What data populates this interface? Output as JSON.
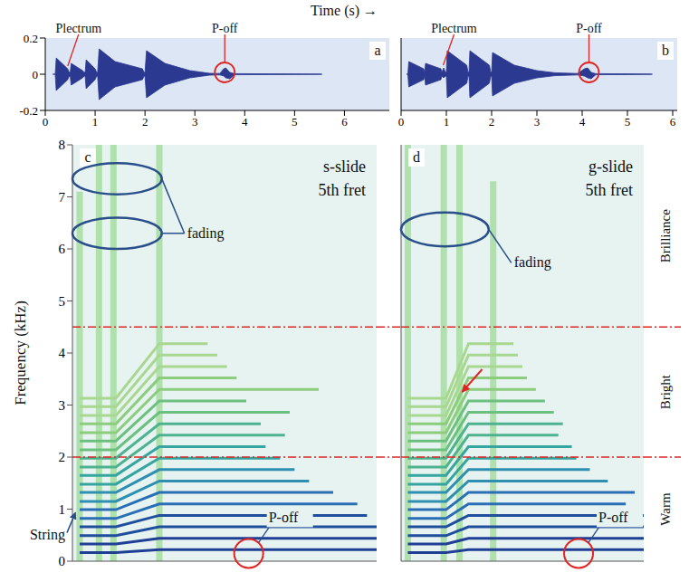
{
  "title": "Time (s) →",
  "chart_data": [
    {
      "type": "area",
      "panel": "a",
      "xlim": [
        0,
        6.9
      ],
      "xticks": [
        0,
        1,
        2,
        3,
        4,
        5,
        6
      ],
      "ylim": [
        -0.2,
        0.2
      ],
      "yticks": [
        -0.2,
        0,
        0.2
      ],
      "x": [
        0.15,
        0.2,
        0.22,
        0.45,
        0.48,
        0.5,
        0.52,
        0.75,
        0.78,
        0.8,
        0.82,
        1.0,
        1.03,
        1.05,
        1.08,
        1.4,
        1.95,
        1.98,
        2.0,
        2.03,
        2.4,
        2.9,
        3.3,
        3.5,
        3.58,
        3.62,
        3.7,
        3.8,
        4.5,
        5.5,
        5.55
      ],
      "series": [
        {
          "color": "#2b3990",
          "values": [
            0,
            0,
            0.09,
            0.03,
            0.01,
            0.01,
            0.06,
            0.02,
            0.01,
            0.01,
            0.08,
            0.03,
            0.01,
            0.01,
            0.14,
            0.07,
            0.03,
            0.01,
            0.01,
            0.13,
            0.06,
            0.02,
            0.005,
            0.004,
            0.03,
            0.035,
            0.01,
            0.003,
            0.002,
            0.001,
            0
          ]
        },
        {
          "color": "#2b3990",
          "values": [
            0,
            0,
            -0.09,
            -0.03,
            -0.01,
            -0.01,
            -0.06,
            -0.02,
            -0.01,
            -0.01,
            -0.08,
            -0.03,
            -0.01,
            -0.01,
            -0.14,
            -0.07,
            -0.03,
            -0.01,
            -0.01,
            -0.13,
            -0.06,
            -0.02,
            -0.005,
            -0.004,
            -0.01,
            -0.02,
            -0.025,
            -0.003,
            -0.002,
            -0.001,
            0
          ]
        }
      ],
      "annotations": [
        {
          "text": "Plectrum",
          "x": 0.45,
          "y": 0.03,
          "marker": "line"
        },
        {
          "text": "P-off",
          "x": 3.6,
          "y": 0.01,
          "marker": "circle"
        }
      ]
    },
    {
      "type": "area",
      "panel": "b",
      "xlim": [
        0,
        6.1
      ],
      "xticks": [
        0,
        1,
        2,
        3,
        4,
        5,
        6
      ],
      "ylim": [
        -0.2,
        0.2
      ],
      "tick_labels": "x",
      "x": [
        0.12,
        0.15,
        0.17,
        0.5,
        0.52,
        0.54,
        0.88,
        0.9,
        0.94,
        0.98,
        1.0,
        1.02,
        1.45,
        1.48,
        1.5,
        1.52,
        1.95,
        1.98,
        2.0,
        2.02,
        2.5,
        3.0,
        3.4,
        3.9,
        4.05,
        4.12,
        4.2,
        4.3,
        5.0,
        5.5,
        5.55
      ],
      "series": [
        {
          "color": "#2b3990",
          "values": [
            0,
            0,
            0.07,
            0.03,
            0.01,
            0.06,
            0.03,
            0.01,
            0.035,
            0.01,
            0.01,
            0.13,
            0.05,
            0.01,
            0.01,
            0.13,
            0.05,
            0.01,
            0.01,
            0.12,
            0.05,
            0.02,
            0.008,
            0.004,
            0.03,
            0.035,
            0.01,
            0.003,
            0.002,
            0.001,
            0
          ]
        },
        {
          "color": "#2b3990",
          "values": [
            0,
            0,
            -0.07,
            -0.03,
            -0.01,
            -0.06,
            -0.03,
            -0.01,
            -0.02,
            -0.01,
            -0.01,
            -0.13,
            -0.05,
            -0.01,
            -0.01,
            -0.13,
            -0.05,
            -0.01,
            -0.01,
            -0.12,
            -0.05,
            -0.02,
            -0.008,
            -0.004,
            -0.01,
            -0.02,
            -0.025,
            -0.003,
            -0.002,
            -0.001,
            0
          ]
        }
      ],
      "annotations": [
        {
          "text": "Plectrum",
          "x": 0.93,
          "y": 0.035,
          "marker": "line"
        },
        {
          "text": "P-off",
          "x": 4.15,
          "y": 0.01,
          "marker": "circle"
        }
      ]
    },
    {
      "type": "spectrogram",
      "panel": "c",
      "title": "s-slide",
      "subtitle": "5th fret",
      "ylabel": "Frequency (kHz)",
      "xlim": [
        0,
        6.3
      ],
      "ylim": [
        0,
        8
      ],
      "yticks": [
        0,
        1,
        2,
        3,
        4,
        5,
        6,
        7,
        8
      ],
      "tick_labels": "y",
      "hlines": [
        2,
        4.5
      ],
      "series": [
        {
          "type": "band",
          "color": "#a6dca0",
          "x": [
            0.15,
            0.15
          ],
          "values": [
            0,
            7.1
          ]
        },
        {
          "type": "band",
          "color": "#a6dca0",
          "x": [
            0.55,
            0.55
          ],
          "values": [
            0,
            8
          ]
        },
        {
          "type": "band",
          "color": "#a6dca0",
          "x": [
            0.85,
            0.85
          ],
          "values": [
            0,
            8
          ]
        },
        {
          "type": "band",
          "color": "#a6dca0",
          "x": [
            1.8,
            1.8
          ],
          "values": [
            0,
            8
          ]
        },
        {
          "type": "line",
          "color": "#1f3f95",
          "x": [
            0.15,
            0.9,
            1.8,
            6.3
          ],
          "values": [
            0.165,
            0.165,
            0.22,
            0.22
          ]
        },
        {
          "type": "line",
          "color": "#1f3f95",
          "x": [
            0.15,
            0.9,
            1.8,
            6.3
          ],
          "values": [
            0.33,
            0.33,
            0.44,
            0.44
          ]
        },
        {
          "type": "line",
          "color": "#1f4e9c",
          "x": [
            0.15,
            0.9,
            1.8,
            6.3
          ],
          "values": [
            0.49,
            0.49,
            0.66,
            0.66
          ]
        },
        {
          "type": "line",
          "color": "#1f4e9c",
          "x": [
            0.15,
            0.9,
            1.8,
            6.1
          ],
          "values": [
            0.66,
            0.66,
            0.88,
            0.88
          ]
        },
        {
          "type": "line",
          "color": "#2a6fb5",
          "x": [
            0.15,
            0.9,
            1.8,
            5.9
          ],
          "values": [
            0.82,
            0.82,
            1.1,
            1.1
          ]
        },
        {
          "type": "line",
          "color": "#2a6fb5",
          "x": [
            0.15,
            0.9,
            1.8,
            5.4
          ],
          "values": [
            0.99,
            0.99,
            1.32,
            1.32
          ]
        },
        {
          "type": "line",
          "color": "#2f8fb0",
          "x": [
            0.15,
            0.9,
            1.8,
            4.9
          ],
          "values": [
            1.15,
            1.15,
            1.54,
            1.54
          ]
        },
        {
          "type": "line",
          "color": "#2f8fb0",
          "x": [
            0.15,
            0.9,
            1.8,
            4.6
          ],
          "values": [
            1.32,
            1.32,
            1.76,
            1.76
          ]
        },
        {
          "type": "line",
          "color": "#35a5a0",
          "x": [
            0.15,
            0.9,
            1.8,
            4.3
          ],
          "values": [
            1.48,
            1.48,
            1.98,
            1.98
          ]
        },
        {
          "type": "line",
          "color": "#35a5a0",
          "x": [
            0.15,
            0.9,
            1.8,
            4.0
          ],
          "values": [
            1.65,
            1.65,
            2.2,
            2.2
          ]
        },
        {
          "type": "line",
          "color": "#4db38f",
          "x": [
            0.15,
            0.9,
            1.8,
            4.4
          ],
          "values": [
            1.81,
            1.81,
            2.42,
            2.42
          ]
        },
        {
          "type": "line",
          "color": "#4db38f",
          "x": [
            0.15,
            0.9,
            1.8,
            3.9
          ],
          "values": [
            1.98,
            1.98,
            2.64,
            2.64
          ]
        },
        {
          "type": "line",
          "color": "#6cc07f",
          "x": [
            0.15,
            0.9,
            1.8,
            4.5
          ],
          "values": [
            2.14,
            2.14,
            2.86,
            2.86
          ]
        },
        {
          "type": "line",
          "color": "#6cc07f",
          "x": [
            0.15,
            0.9,
            1.8,
            3.6
          ],
          "values": [
            2.31,
            2.31,
            3.08,
            3.08
          ]
        },
        {
          "type": "line",
          "color": "#8ccc7d",
          "x": [
            0.15,
            0.9,
            1.8,
            5.1
          ],
          "values": [
            2.47,
            2.47,
            3.3,
            3.3
          ]
        },
        {
          "type": "line",
          "color": "#8ccc7d",
          "x": [
            0.15,
            0.9,
            1.8,
            3.4
          ],
          "values": [
            2.64,
            2.64,
            3.52,
            3.52
          ]
        },
        {
          "type": "line",
          "color": "#a8d88f",
          "x": [
            0.15,
            0.9,
            1.8,
            3.2
          ],
          "values": [
            2.8,
            2.8,
            3.74,
            3.74
          ]
        },
        {
          "type": "line",
          "color": "#a8d88f",
          "x": [
            0.15,
            0.9,
            1.8,
            3.0
          ],
          "values": [
            2.97,
            2.97,
            3.96,
            3.96
          ]
        },
        {
          "type": "line",
          "color": "#a8d88f",
          "x": [
            0.15,
            0.9,
            1.8,
            2.8
          ],
          "values": [
            3.13,
            3.13,
            4.18,
            4.18
          ]
        }
      ],
      "ellipses": [
        {
          "x": [
            0,
            1.85
          ],
          "y": [
            7.05,
            7.65
          ]
        },
        {
          "x": [
            0,
            1.85
          ],
          "y": [
            6.0,
            6.6
          ]
        }
      ],
      "ellipse_label": "fading",
      "annotations": [
        {
          "text": "String",
          "x": 0.1,
          "y": 1.0,
          "marker": "arrow"
        },
        {
          "text": "P-off",
          "x": 3.65,
          "y": 0.15,
          "marker": "circle"
        }
      ]
    },
    {
      "type": "spectrogram",
      "panel": "d",
      "title": "g-slide",
      "subtitle": "5th fret",
      "xlim": [
        0,
        5.4
      ],
      "ylim": [
        0,
        8
      ],
      "tick_labels": false,
      "hlines": [
        2,
        4.5
      ],
      "series": [
        {
          "type": "band",
          "color": "#a6dca0",
          "x": [
            0.15,
            0.15
          ],
          "values": [
            0,
            8
          ]
        },
        {
          "type": "band",
          "color": "#a6dca0",
          "x": [
            0.95,
            0.95
          ],
          "values": [
            0,
            8
          ]
        },
        {
          "type": "band",
          "color": "#a6dca0",
          "x": [
            1.3,
            1.3
          ],
          "values": [
            0,
            8
          ]
        },
        {
          "type": "band",
          "color": "#a6dca0",
          "x": [
            2.05,
            2.05
          ],
          "values": [
            0,
            7.3
          ]
        },
        {
          "type": "line",
          "color": "#1f3f95",
          "x": [
            0.15,
            1.0,
            1.5,
            5.4
          ],
          "values": [
            0.165,
            0.165,
            0.22,
            0.22
          ]
        },
        {
          "type": "line",
          "color": "#1f3f95",
          "x": [
            0.15,
            1.0,
            1.5,
            5.4
          ],
          "values": [
            0.33,
            0.33,
            0.44,
            0.44
          ]
        },
        {
          "type": "line",
          "color": "#1f4e9c",
          "x": [
            0.15,
            1.0,
            1.5,
            5.4
          ],
          "values": [
            0.49,
            0.49,
            0.66,
            0.66
          ]
        },
        {
          "type": "line",
          "color": "#1f4e9c",
          "x": [
            0.15,
            1.0,
            1.5,
            5.4
          ],
          "values": [
            0.66,
            0.66,
            0.88,
            0.88
          ]
        },
        {
          "type": "line",
          "color": "#2a6fb5",
          "x": [
            0.15,
            1.0,
            1.5,
            5.0
          ],
          "values": [
            0.82,
            0.82,
            1.1,
            1.1
          ]
        },
        {
          "type": "line",
          "color": "#2a6fb5",
          "x": [
            0.15,
            1.0,
            1.5,
            5.2
          ],
          "values": [
            0.99,
            0.99,
            1.32,
            1.32
          ]
        },
        {
          "type": "line",
          "color": "#2f8fb0",
          "x": [
            0.15,
            1.0,
            1.5,
            4.6
          ],
          "values": [
            1.15,
            1.15,
            1.54,
            1.54
          ]
        },
        {
          "type": "line",
          "color": "#2f8fb0",
          "x": [
            0.15,
            1.0,
            1.5,
            4.2
          ],
          "values": [
            1.32,
            1.32,
            1.76,
            1.76
          ]
        },
        {
          "type": "line",
          "color": "#35a5a0",
          "x": [
            0.15,
            1.0,
            1.5,
            3.9
          ],
          "values": [
            1.48,
            1.48,
            1.98,
            1.98
          ]
        },
        {
          "type": "line",
          "color": "#35a5a0",
          "x": [
            0.15,
            1.0,
            1.5,
            3.8
          ],
          "values": [
            1.65,
            1.65,
            2.2,
            2.2
          ]
        },
        {
          "type": "line",
          "color": "#4db38f",
          "x": [
            0.15,
            1.0,
            1.5,
            3.5
          ],
          "values": [
            1.81,
            1.81,
            2.42,
            2.42
          ]
        },
        {
          "type": "line",
          "color": "#4db38f",
          "x": [
            0.15,
            1.0,
            1.5,
            3.6
          ],
          "values": [
            1.98,
            1.98,
            2.64,
            2.64
          ]
        },
        {
          "type": "line",
          "color": "#6cc07f",
          "x": [
            0.15,
            1.0,
            1.5,
            3.4
          ],
          "values": [
            2.14,
            2.14,
            2.86,
            2.86
          ]
        },
        {
          "type": "line",
          "color": "#6cc07f",
          "x": [
            0.15,
            1.0,
            1.5,
            3.2
          ],
          "values": [
            2.31,
            2.31,
            3.08,
            3.08
          ]
        },
        {
          "type": "line",
          "color": "#8ccc7d",
          "x": [
            0.15,
            1.0,
            1.5,
            3.0
          ],
          "values": [
            2.47,
            2.47,
            3.3,
            3.3
          ]
        },
        {
          "type": "line",
          "color": "#8ccc7d",
          "x": [
            0.15,
            1.0,
            1.5,
            2.8
          ],
          "values": [
            2.64,
            2.64,
            3.52,
            3.52
          ]
        },
        {
          "type": "line",
          "color": "#a8d88f",
          "x": [
            0.15,
            1.0,
            1.5,
            2.7
          ],
          "values": [
            2.8,
            2.8,
            3.74,
            3.74
          ]
        },
        {
          "type": "line",
          "color": "#a8d88f",
          "x": [
            0.15,
            1.0,
            1.5,
            2.6
          ],
          "values": [
            2.97,
            2.97,
            3.96,
            3.96
          ]
        },
        {
          "type": "line",
          "color": "#a8d88f",
          "x": [
            0.15,
            1.0,
            1.5,
            2.5
          ],
          "values": [
            3.13,
            3.13,
            4.18,
            4.18
          ]
        }
      ],
      "ellipses": [
        {
          "x": [
            0,
            1.95
          ],
          "y": [
            6.05,
            6.7
          ]
        }
      ],
      "ellipse_label": "fading",
      "arrow": {
        "x": 1.3,
        "y": 3.2
      },
      "regions": [
        {
          "label": "Warm",
          "range": [
            0,
            2
          ]
        },
        {
          "label": "Bright",
          "range": [
            2,
            4.5
          ]
        },
        {
          "label": "Brilliance",
          "range": [
            4.5,
            8
          ]
        }
      ],
      "annotations": [
        {
          "text": "P-off",
          "x": 3.95,
          "y": 0.15,
          "marker": "circle"
        }
      ]
    }
  ]
}
